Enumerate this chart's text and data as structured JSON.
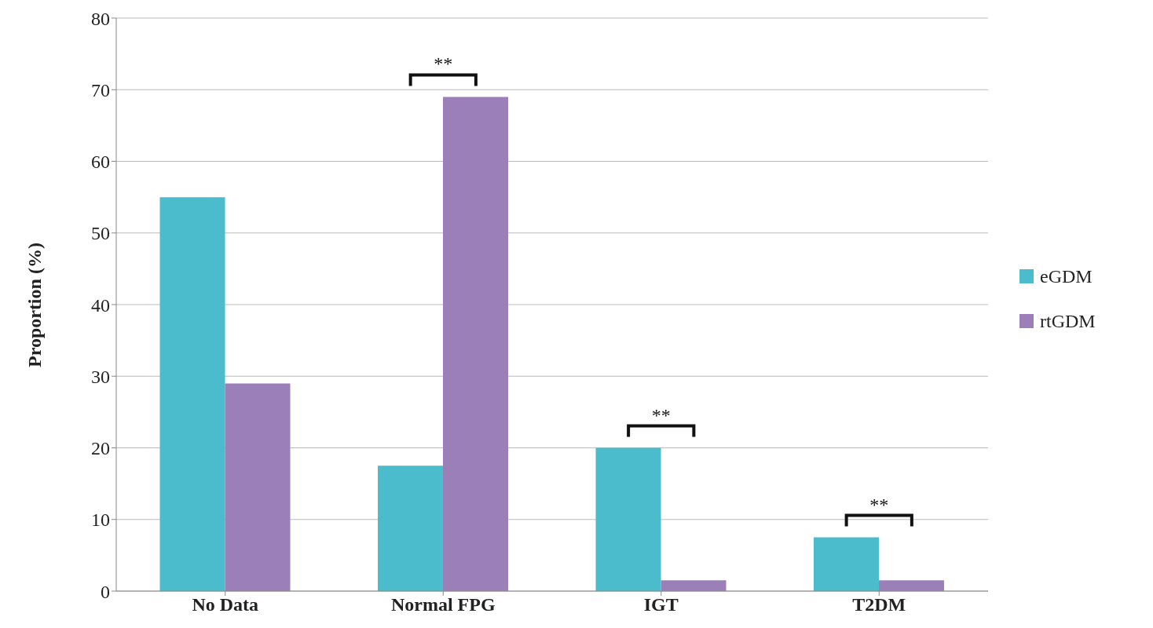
{
  "chart_data": {
    "type": "bar",
    "ylabel": "Proportion (%)",
    "categories": [
      "No Data",
      "Normal FPG",
      "IGT",
      "T2DM"
    ],
    "series": [
      {
        "name": "eGDM",
        "color": "#4bbccc",
        "values": [
          55,
          17.5,
          20,
          7.5
        ]
      },
      {
        "name": "rtGDM",
        "color": "#9b7fb8",
        "values": [
          29,
          69,
          1.5,
          1.5
        ]
      }
    ],
    "ylim": [
      0,
      80
    ],
    "yticks": [
      0,
      10,
      20,
      30,
      40,
      50,
      60,
      70,
      80
    ],
    "grid": "y",
    "legend": "right",
    "annotations": [
      "**",
      "**",
      "**"
    ]
  }
}
